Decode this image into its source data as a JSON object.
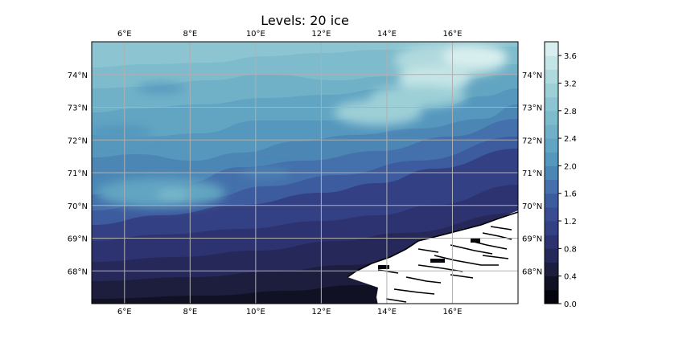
{
  "title": "Levels: 20 ice",
  "map": {
    "lon_range": [
      5,
      18
    ],
    "lat_range": [
      67,
      75
    ],
    "grid": true,
    "x_ticks": [
      {
        "value": 6,
        "label": "6°E"
      },
      {
        "value": 8,
        "label": "8°E"
      },
      {
        "value": 10,
        "label": "10°E"
      },
      {
        "value": 12,
        "label": "12°E"
      },
      {
        "value": 14,
        "label": "14°E"
      },
      {
        "value": 16,
        "label": "16°E"
      }
    ],
    "y_ticks": [
      {
        "value": 68,
        "label": "68°N"
      },
      {
        "value": 69,
        "label": "69°N"
      },
      {
        "value": 70,
        "label": "70°N"
      },
      {
        "value": 71,
        "label": "71°N"
      },
      {
        "value": 72,
        "label": "72°N"
      },
      {
        "value": 73,
        "label": "73°N"
      },
      {
        "value": 74,
        "label": "74°N"
      }
    ],
    "coastline_color": "#000000",
    "land_color": "#ffffff"
  },
  "colorbar": {
    "range": [
      0,
      3.8
    ],
    "levels": [
      0,
      0.2,
      0.4,
      0.6,
      0.8,
      1.0,
      1.2,
      1.4,
      1.6,
      1.8,
      2.0,
      2.2,
      2.4,
      2.6,
      2.8,
      3.0,
      3.2,
      3.4,
      3.6,
      3.8
    ],
    "colors": [
      "#04040d",
      "#111124",
      "#1d1d3d",
      "#26285a",
      "#2d3370",
      "#344084",
      "#394c93",
      "#3d5c9f",
      "#4470ab",
      "#4b86b5",
      "#5597bd",
      "#62a5c2",
      "#70b1c8",
      "#7ebbcc",
      "#8cc5d1",
      "#9dcfd7",
      "#b0d9dd",
      "#c4e5e6",
      "#d9efef"
    ],
    "ticks": [
      {
        "value": 0.0,
        "label": "0.0"
      },
      {
        "value": 0.4,
        "label": "0.4"
      },
      {
        "value": 0.8,
        "label": "0.8"
      },
      {
        "value": 1.2,
        "label": "1.2"
      },
      {
        "value": 1.6,
        "label": "1.6"
      },
      {
        "value": 2.0,
        "label": "2.0"
      },
      {
        "value": 2.4,
        "label": "2.4"
      },
      {
        "value": 2.8,
        "label": "2.8"
      },
      {
        "value": 3.2,
        "label": "3.2"
      },
      {
        "value": 3.6,
        "label": "3.6"
      }
    ]
  }
}
